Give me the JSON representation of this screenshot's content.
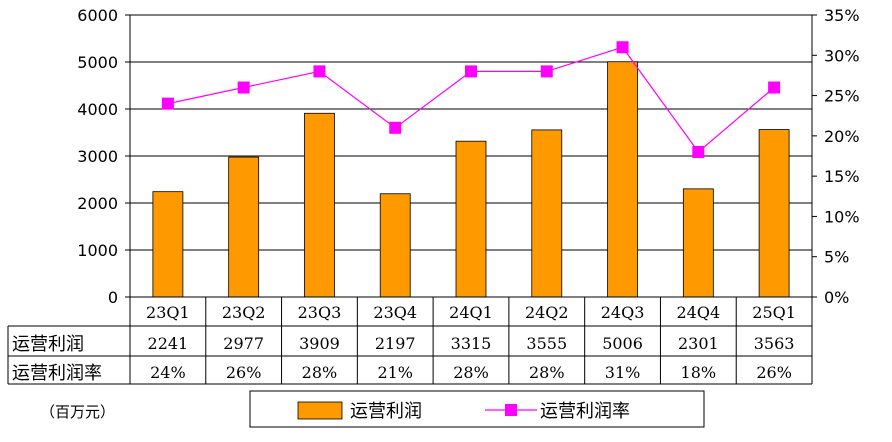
{
  "chart_data": {
    "type": "bar",
    "categories": [
      "23Q1",
      "23Q2",
      "23Q3",
      "23Q4",
      "24Q1",
      "24Q2",
      "24Q3",
      "24Q4",
      "25Q1"
    ],
    "series": [
      {
        "name": "运营利润",
        "type": "bar",
        "axis": "left",
        "color": "#ff9900",
        "values": [
          2241,
          2977,
          3909,
          2197,
          3315,
          3555,
          5006,
          2301,
          3563
        ]
      },
      {
        "name": "运营利润率",
        "type": "line",
        "axis": "right",
        "color": "#ff00ff",
        "values": [
          0.24,
          0.26,
          0.28,
          0.21,
          0.28,
          0.28,
          0.31,
          0.18,
          0.26
        ],
        "display": [
          "24%",
          "26%",
          "28%",
          "21%",
          "28%",
          "28%",
          "31%",
          "18%",
          "26%"
        ]
      }
    ],
    "y_left": {
      "ylim": [
        0,
        6000
      ],
      "ticks": [
        "0",
        "1000",
        "2000",
        "3000",
        "4000",
        "5000",
        "6000"
      ]
    },
    "y_right": {
      "ylim": [
        0,
        0.35
      ],
      "ticks": [
        "0%",
        "5%",
        "10%",
        "15%",
        "20%",
        "25%",
        "30%",
        "35%"
      ]
    },
    "grid": true,
    "data_table": true,
    "legend": "bottom",
    "unit_note": "（百万元）"
  }
}
